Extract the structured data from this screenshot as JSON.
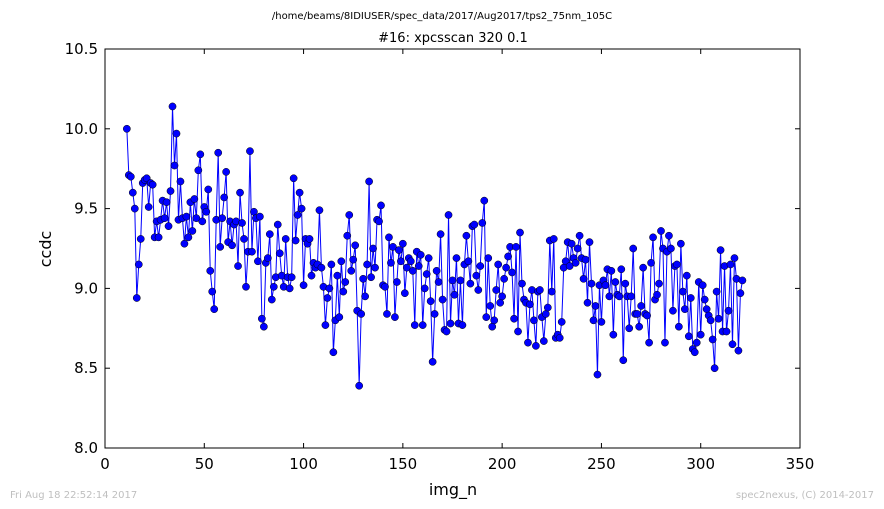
{
  "chart_data": {
    "type": "line",
    "suptitle": "/home/beams/8IDIUSER/spec_data/2017/Aug2017/tps2_75nm_105C",
    "title": "#16: xpcsscan 320 0.1",
    "xlabel": "img_n",
    "ylabel": "ccdc",
    "xlim": [
      0,
      350
    ],
    "ylim": [
      8.0,
      10.5
    ],
    "xticks": [
      "0",
      "50",
      "100",
      "150",
      "200",
      "250",
      "300",
      "350"
    ],
    "yticks": [
      "8.0",
      "8.5",
      "9.0",
      "9.5",
      "10.0",
      "10.5"
    ],
    "grid": false,
    "line_color": "#0000ff",
    "marker": "circle",
    "series": [
      {
        "x_start": 11,
        "x_step": 1,
        "values": [
          10.0,
          9.71,
          9.7,
          9.6,
          9.5,
          8.94,
          9.15,
          9.31,
          9.66,
          9.68,
          9.69,
          9.51,
          9.66,
          9.65,
          9.32,
          9.42,
          9.32,
          9.43,
          9.55,
          9.44,
          9.54,
          9.39,
          9.61,
          10.14,
          9.77,
          9.97,
          9.43,
          9.67,
          9.44,
          9.28,
          9.45,
          9.32,
          9.54,
          9.36,
          9.56,
          9.44,
          9.74,
          9.84,
          9.42,
          9.51,
          9.48,
          9.62,
          9.11,
          8.98,
          8.87,
          9.43,
          9.85,
          9.26,
          9.44,
          9.57,
          9.73,
          9.29,
          9.42,
          9.27,
          9.4,
          9.42,
          9.14,
          9.6,
          9.41,
          9.31,
          9.01,
          9.23,
          9.86,
          9.23,
          9.48,
          9.44,
          9.17,
          9.45,
          8.81,
          8.76,
          9.16,
          9.19,
          9.34,
          8.93,
          9.01,
          9.07,
          9.4,
          9.22,
          9.08,
          9.01,
          9.31,
          9.07,
          9.0,
          9.07,
          9.69,
          9.3,
          9.46,
          9.6,
          9.5,
          9.02,
          9.31,
          9.28,
          9.31,
          9.08,
          9.16,
          9.13,
          9.15,
          9.49,
          9.13,
          9.01,
          8.77,
          8.94,
          9.0,
          9.15,
          8.6,
          8.8,
          9.08,
          8.82,
          9.17,
          8.98,
          9.04,
          9.33,
          9.46,
          9.11,
          9.18,
          9.27,
          8.86,
          8.39,
          8.84,
          9.06,
          8.95,
          9.15,
          9.67,
          9.07,
          9.25,
          9.13,
          9.43,
          9.42,
          9.52,
          9.02,
          9.01,
          8.84,
          9.32,
          9.16,
          9.26,
          8.82,
          9.04,
          9.24,
          9.17,
          9.28,
          8.97,
          9.13,
          9.19,
          9.17,
          9.11,
          8.77,
          9.23,
          9.14,
          9.21,
          8.77,
          9.0,
          9.09,
          9.19,
          8.92,
          8.54,
          8.84,
          9.11,
          9.04,
          9.34,
          8.93,
          8.74,
          8.73,
          9.46,
          8.78,
          9.05,
          8.96,
          9.19,
          8.78,
          9.05,
          8.77,
          9.15,
          9.33,
          9.17,
          9.03,
          9.39,
          9.4,
          9.08,
          8.99,
          9.14,
          9.41,
          9.55,
          8.82,
          9.19,
          8.89,
          8.76,
          8.8,
          8.99,
          9.15,
          8.91,
          8.95,
          9.06,
          9.13,
          9.2,
          9.26,
          9.1,
          8.81,
          9.26,
          8.73,
          9.35,
          9.03,
          8.93,
          8.91,
          8.66,
          8.9,
          8.99,
          8.8,
          8.64,
          8.98,
          8.99,
          8.82,
          8.67,
          8.84,
          8.88,
          9.3,
          8.98,
          9.31,
          8.69,
          8.71,
          8.69,
          8.79,
          9.13,
          9.17,
          9.29,
          9.14,
          9.28,
          9.19,
          9.16,
          9.25,
          9.33,
          9.19,
          9.06,
          9.18,
          8.91,
          9.29,
          9.03,
          8.8,
          8.89,
          8.46,
          9.02,
          8.79,
          9.05,
          9.02,
          9.12,
          8.95,
          9.11,
          8.71,
          9.04,
          8.96,
          8.95,
          9.12,
          8.55,
          9.03,
          8.95,
          8.75,
          8.95,
          9.25,
          8.84,
          8.84,
          8.76,
          8.89,
          9.13,
          8.84,
          8.83,
          8.66,
          9.16,
          9.32,
          8.93,
          8.96,
          9.03,
          9.36,
          9.25,
          8.66,
          9.23,
          9.33,
          9.25,
          8.86,
          9.14,
          9.15,
          8.76,
          9.28,
          8.98,
          8.87,
          9.08,
          8.7,
          8.94,
          8.62,
          8.6,
          8.66,
          9.04,
          8.71,
          9.02,
          8.93,
          8.87,
          8.83,
          8.8,
          8.68,
          8.5,
          8.98,
          8.81,
          9.24,
          8.73,
          9.14,
          8.73,
          8.86,
          9.15,
          8.65,
          9.19,
          9.06,
          8.61,
          8.97,
          9.05
        ]
      }
    ]
  },
  "footer": {
    "left": "Fri Aug 18 22:52:14 2017",
    "right": "spec2nexus, (C) 2014-2017"
  }
}
